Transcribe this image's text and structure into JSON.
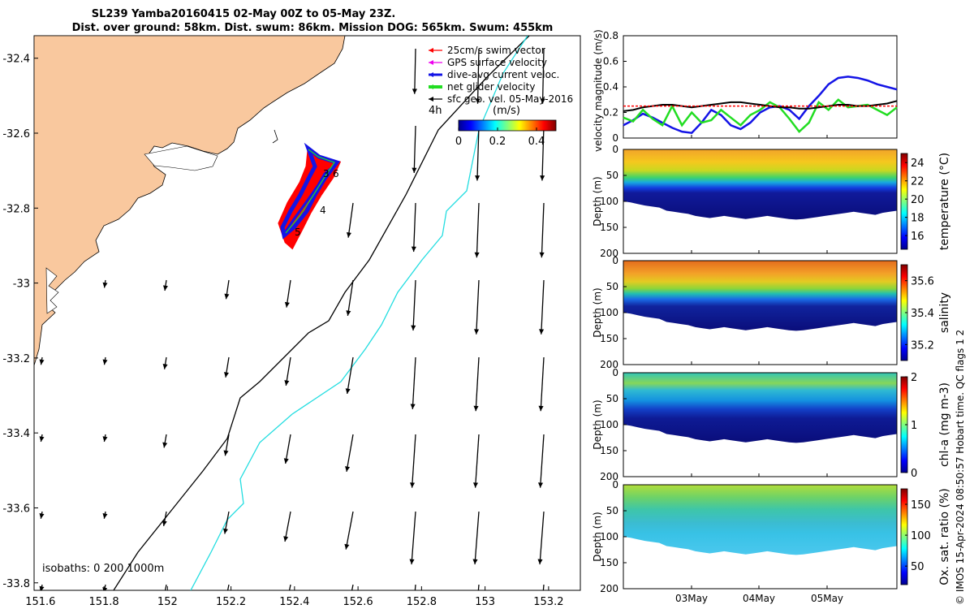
{
  "title_line1": "SL239 Yamba20160415 02-May 00Z to 05-May 23Z.",
  "title_line2": "Dist. over ground: 58km. Dist. swum: 86km. Mission DOG: 565km. Swum: 455km",
  "credit": "© IMOS 15-Apr-2024 08:50:57 Hobart time. QC flags 1  2",
  "colors": {
    "land": "#f9c89e",
    "red": "#ff0000",
    "blue": "#1414e6",
    "green": "#22dd22",
    "black": "#000000",
    "cyan": "#22dde0",
    "magenta": "#ee00ee"
  },
  "chart_data": [
    {
      "type": "map",
      "xticks": [
        "151.6",
        "151.8",
        "152",
        "152.2",
        "152.4",
        "152.6",
        "152.8",
        "153",
        "153.2"
      ],
      "yticks": [
        "-32.4",
        "-32.6",
        "-32.8",
        "-33",
        "-33.2",
        "-33.4",
        "-33.6",
        "-33.8"
      ],
      "xlim": [
        151.58,
        153.3
      ],
      "ylim": [
        -33.82,
        -32.34
      ],
      "legend": {
        "items": [
          "25cm/s swim vector",
          "GPS surface velocity",
          "dive-avg current veloc.",
          "net glider velocity",
          "sfc geo. vel. 05-May-2016"
        ],
        "interval_label": "4h",
        "colorbar_label": "(m/s)",
        "colorbar_ticks": [
          "0",
          "0.2",
          "0.4"
        ],
        "colorbar_range": [
          0,
          0.5
        ]
      },
      "track_labels": [
        "3",
        "6",
        "4",
        "5"
      ],
      "isobaths_label": "isobaths: 0   200  1000m"
    },
    {
      "type": "line",
      "ylabel": "velocity magnitude (m/s)",
      "ylim": [
        0,
        0.8
      ],
      "yticks": [
        "0",
        "0.2",
        "0.4",
        "0.6",
        "0.8"
      ],
      "series": [
        {
          "color": "blue",
          "values": [
            0.1,
            0.14,
            0.19,
            0.16,
            0.12,
            0.08,
            0.05,
            0.04,
            0.12,
            0.22,
            0.18,
            0.1,
            0.07,
            0.12,
            0.2,
            0.24,
            0.25,
            0.22,
            0.15,
            0.25,
            0.33,
            0.42,
            0.47,
            0.48,
            0.47,
            0.45,
            0.42,
            0.4,
            0.38
          ]
        },
        {
          "color": "green",
          "values": [
            0.16,
            0.13,
            0.22,
            0.15,
            0.1,
            0.25,
            0.1,
            0.2,
            0.12,
            0.14,
            0.22,
            0.16,
            0.1,
            0.18,
            0.22,
            0.28,
            0.24,
            0.15,
            0.05,
            0.12,
            0.28,
            0.22,
            0.3,
            0.24,
            0.25,
            0.26,
            0.22,
            0.18,
            0.24
          ]
        },
        {
          "color": "black",
          "values": [
            0.21,
            0.22,
            0.24,
            0.25,
            0.26,
            0.26,
            0.25,
            0.24,
            0.25,
            0.26,
            0.27,
            0.28,
            0.28,
            0.27,
            0.26,
            0.25,
            0.24,
            0.24,
            0.23,
            0.23,
            0.24,
            0.25,
            0.26,
            0.26,
            0.25,
            0.25,
            0.26,
            0.27,
            0.29
          ]
        },
        {
          "color": "red",
          "values": [
            0.25,
            0.25,
            0.25,
            0.25,
            0.25,
            0.25,
            0.25,
            0.25,
            0.25,
            0.25,
            0.25,
            0.25,
            0.25,
            0.25,
            0.25,
            0.25,
            0.25,
            0.25,
            0.25,
            0.25,
            0.25,
            0.25,
            0.25,
            0.25,
            0.25,
            0.25,
            0.25,
            0.25,
            0.25
          ]
        }
      ]
    },
    {
      "type": "heatmap",
      "ylabel": "Depth (m)",
      "ylim": [
        0,
        200
      ],
      "yticks": [
        "0",
        "50",
        "100",
        "150",
        "200"
      ],
      "colorbar_label": "temperature (°C)",
      "colorbar_ticks": [
        "24",
        "22",
        "20",
        "18",
        "16"
      ],
      "clim": [
        14.5,
        25
      ]
    },
    {
      "type": "heatmap",
      "ylabel": "Depth (m)",
      "ylim": [
        0,
        200
      ],
      "yticks": [
        "0",
        "50",
        "100",
        "150",
        "200"
      ],
      "colorbar_label": "salinity",
      "colorbar_ticks": [
        "35.6",
        "35.4",
        "35.2"
      ],
      "clim": [
        35.1,
        35.7
      ]
    },
    {
      "type": "heatmap",
      "ylabel": "Depth (m)",
      "ylim": [
        0,
        200
      ],
      "yticks": [
        "0",
        "50",
        "100",
        "150",
        "200"
      ],
      "colorbar_label": "chl-a (mg m-3)",
      "colorbar_ticks": [
        "2",
        "1",
        "0"
      ],
      "clim": [
        0,
        2
      ]
    },
    {
      "type": "heatmap",
      "ylabel": "Depth (m)",
      "ylim": [
        0,
        200
      ],
      "yticks": [
        "0",
        "50",
        "100",
        "150",
        "200"
      ],
      "xticks": [
        "03May",
        "04May",
        "05May"
      ],
      "colorbar_label": "Ox. sat. ratio (%)",
      "colorbar_ticks": [
        "150",
        "100",
        "50"
      ],
      "clim": [
        20,
        175
      ]
    }
  ]
}
